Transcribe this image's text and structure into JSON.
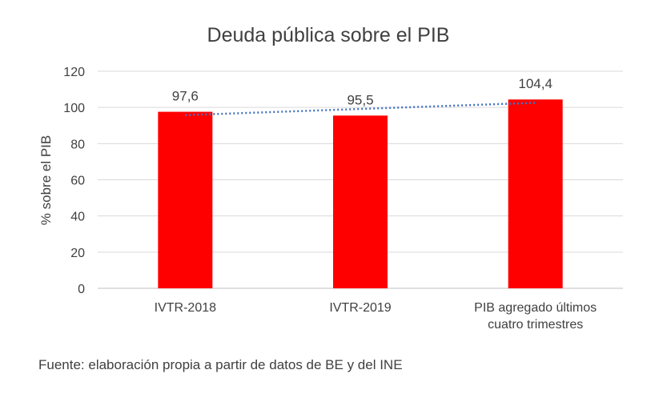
{
  "chart_data": {
    "type": "bar",
    "title": "Deuda pública sobre el PIB",
    "ylabel": "% sobre el PIB",
    "xlabel": "",
    "categories": [
      [
        "IVTR-2018"
      ],
      [
        "IVTR-2019"
      ],
      [
        "PIB agregado últimos",
        "cuatro trimestres"
      ]
    ],
    "values": [
      97.6,
      95.5,
      104.4
    ],
    "data_labels": [
      "97,6",
      "95,5",
      "104,4"
    ],
    "ylim": [
      0,
      120
    ],
    "yticks": [
      0,
      20,
      40,
      60,
      80,
      100,
      120
    ],
    "grid": true,
    "trendline": {
      "type": "linear",
      "style": "dotted",
      "color": "#4472C4"
    },
    "colors": {
      "bar": "#FF0000",
      "grid": "#D9D9D9",
      "text": "#404040"
    }
  },
  "source": "Fuente: elaboración propia a partir de datos de BE y del INE"
}
